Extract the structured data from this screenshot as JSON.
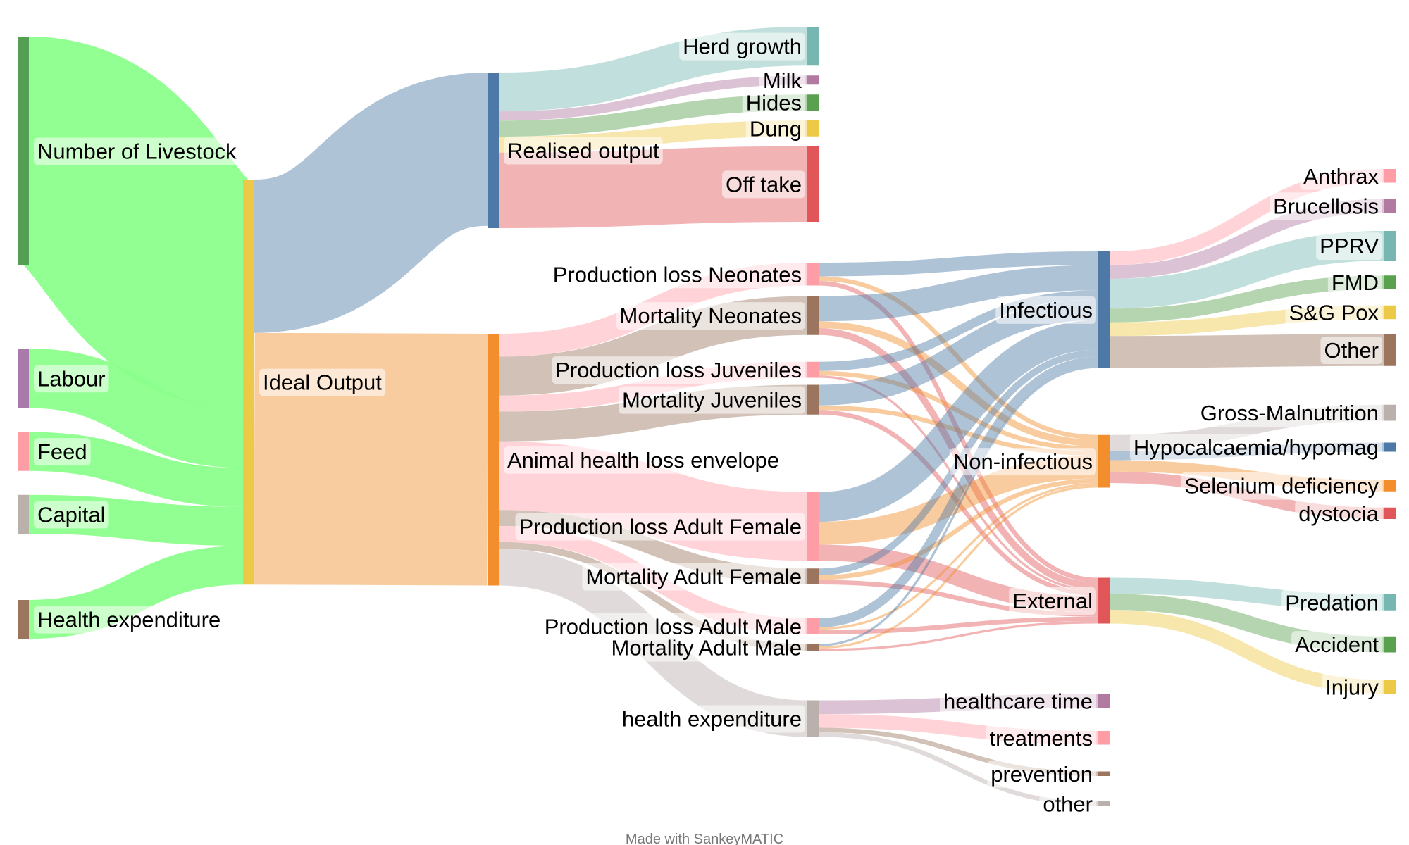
{
  "credit": "Made with SankeyMATIC",
  "nodes": [
    {
      "id": "livestock",
      "label": "Number of Livestock",
      "color": "#559f55",
      "label_side": "right"
    },
    {
      "id": "labour",
      "label": "Labour",
      "color": "#a97aab",
      "label_side": "right"
    },
    {
      "id": "feed",
      "label": "Feed",
      "color": "#ff9da7",
      "label_side": "right"
    },
    {
      "id": "capital",
      "label": "Capital",
      "color": "#bab0ac",
      "label_side": "right"
    },
    {
      "id": "healthexp_in",
      "label": "Health expenditure",
      "color": "#9c755f",
      "label_side": "right"
    },
    {
      "id": "ideal",
      "label": "Ideal Output",
      "color": "#edc948",
      "label_side": "right"
    },
    {
      "id": "realised",
      "label": "Realised output",
      "color": "#4e79a7",
      "label_side": "right"
    },
    {
      "id": "envelope",
      "label": "Animal health loss envelope",
      "color": "#f28e2b",
      "label_side": "right"
    },
    {
      "id": "herd",
      "label": "Herd growth",
      "color": "#76b7b2",
      "label_side": "left"
    },
    {
      "id": "milk",
      "label": "Milk",
      "color": "#b07aa1",
      "label_side": "left"
    },
    {
      "id": "hides",
      "label": "Hides",
      "color": "#59a14f",
      "label_side": "left"
    },
    {
      "id": "dung",
      "label": "Dung",
      "color": "#edc948",
      "label_side": "left"
    },
    {
      "id": "offtake",
      "label": "Off take",
      "color": "#e15759",
      "label_side": "left"
    },
    {
      "id": "pl_neo",
      "label": "Production loss Neonates",
      "color": "#ff9da7",
      "label_side": "left"
    },
    {
      "id": "mort_neo",
      "label": "Mortality Neonates",
      "color": "#9c755f",
      "label_side": "left"
    },
    {
      "id": "pl_juv",
      "label": "Production loss Juveniles",
      "color": "#ff9da7",
      "label_side": "left"
    },
    {
      "id": "mort_juv",
      "label": "Mortality Juveniles",
      "color": "#9c755f",
      "label_side": "left"
    },
    {
      "id": "pl_af",
      "label": "Production loss Adult Female",
      "color": "#ff9da7",
      "label_side": "left"
    },
    {
      "id": "mort_af",
      "label": "Mortality Adult Female",
      "color": "#9c755f",
      "label_side": "left"
    },
    {
      "id": "pl_am",
      "label": "Production loss Adult Male",
      "color": "#ff9da7",
      "label_side": "left"
    },
    {
      "id": "mort_am",
      "label": "Mortality Adult Male",
      "color": "#9c755f",
      "label_side": "left"
    },
    {
      "id": "health_exp",
      "label": "health expenditure",
      "color": "#bab0ac",
      "label_side": "left"
    },
    {
      "id": "infectious",
      "label": "Infectious",
      "color": "#4e79a7",
      "label_side": "left"
    },
    {
      "id": "noninf",
      "label": "Non-infectious",
      "color": "#f28e2b",
      "label_side": "left"
    },
    {
      "id": "external",
      "label": "External",
      "color": "#e15759",
      "label_side": "left"
    },
    {
      "id": "hc_time",
      "label": "healthcare time",
      "color": "#b07aa1",
      "label_side": "left"
    },
    {
      "id": "treatments",
      "label": "treatments",
      "color": "#ff9da7",
      "label_side": "left"
    },
    {
      "id": "prevention",
      "label": "prevention",
      "color": "#9c755f",
      "label_side": "left"
    },
    {
      "id": "other_he",
      "label": "other",
      "color": "#bab0ac",
      "label_side": "left"
    },
    {
      "id": "anthrax",
      "label": "Anthrax",
      "color": "#ff9da7",
      "label_side": "left"
    },
    {
      "id": "brucellosis",
      "label": "Brucellosis",
      "color": "#b07aa1",
      "label_side": "left"
    },
    {
      "id": "pprv",
      "label": "PPRV",
      "color": "#76b7b2",
      "label_side": "left"
    },
    {
      "id": "fmd",
      "label": "FMD",
      "color": "#59a14f",
      "label_side": "left"
    },
    {
      "id": "sgpox",
      "label": "S&G Pox",
      "color": "#edc948",
      "label_side": "left"
    },
    {
      "id": "other_inf",
      "label": "Other",
      "color": "#9c755f",
      "label_side": "left"
    },
    {
      "id": "gross_mal",
      "label": "Gross-Malnutrition",
      "color": "#bab0ac",
      "label_side": "left"
    },
    {
      "id": "hypocal",
      "label": "Hypocalcaemia/hypomag",
      "color": "#4e79a7",
      "label_side": "left"
    },
    {
      "id": "selenium",
      "label": "Selenium deficiency",
      "color": "#f28e2b",
      "label_side": "left"
    },
    {
      "id": "dystocia",
      "label": "dystocia",
      "color": "#e15759",
      "label_side": "left"
    },
    {
      "id": "predation",
      "label": "Predation",
      "color": "#76b7b2",
      "label_side": "left"
    },
    {
      "id": "accident",
      "label": "Accident",
      "color": "#59a14f",
      "label_side": "left"
    },
    {
      "id": "injury",
      "label": "Injury",
      "color": "#edc948",
      "label_side": "left"
    }
  ],
  "flows": [
    {
      "from": "livestock",
      "to": "ideal",
      "value": 100,
      "color": "#8bff8b"
    },
    {
      "from": "labour",
      "to": "ideal",
      "value": 26,
      "color": "#8bff8b"
    },
    {
      "from": "feed",
      "to": "ideal",
      "value": 17,
      "color": "#8bff8b"
    },
    {
      "from": "capital",
      "to": "ideal",
      "value": 17,
      "color": "#8bff8b"
    },
    {
      "from": "healthexp_in",
      "to": "ideal",
      "value": 17,
      "color": "#8bff8b"
    },
    {
      "from": "ideal",
      "to": "realised",
      "value": 67,
      "color": "#4e79a7"
    },
    {
      "from": "ideal",
      "to": "envelope",
      "value": 110,
      "color": "#f28e2b"
    },
    {
      "from": "realised",
      "to": "herd",
      "value": 17,
      "color": "#76b7b2"
    },
    {
      "from": "realised",
      "to": "milk",
      "value": 4,
      "color": "#b07aa1"
    },
    {
      "from": "realised",
      "to": "hides",
      "value": 7,
      "color": "#59a14f"
    },
    {
      "from": "realised",
      "to": "dung",
      "value": 7,
      "color": "#edc948"
    },
    {
      "from": "realised",
      "to": "offtake",
      "value": 33,
      "color": "#e15759"
    },
    {
      "from": "envelope",
      "to": "pl_neo",
      "value": 10,
      "color": "#ff9da7"
    },
    {
      "from": "envelope",
      "to": "mort_neo",
      "value": 17,
      "color": "#9c755f"
    },
    {
      "from": "envelope",
      "to": "pl_juv",
      "value": 7,
      "color": "#ff9da7"
    },
    {
      "from": "envelope",
      "to": "mort_juv",
      "value": 13,
      "color": "#9c755f"
    },
    {
      "from": "envelope",
      "to": "pl_af",
      "value": 30,
      "color": "#ff9da7"
    },
    {
      "from": "envelope",
      "to": "mort_af",
      "value": 7,
      "color": "#9c755f"
    },
    {
      "from": "envelope",
      "to": "pl_am",
      "value": 7,
      "color": "#ff9da7"
    },
    {
      "from": "envelope",
      "to": "mort_am",
      "value": 3,
      "color": "#9c755f"
    },
    {
      "from": "envelope",
      "to": "health_exp",
      "value": 16,
      "color": "#bab0ac"
    },
    {
      "from": "pl_neo",
      "to": "infectious",
      "value": 6,
      "color": "#4e79a7"
    },
    {
      "from": "pl_neo",
      "to": "noninf",
      "value": 2,
      "color": "#f28e2b"
    },
    {
      "from": "pl_neo",
      "to": "external",
      "value": 2,
      "color": "#e15759"
    },
    {
      "from": "mort_neo",
      "to": "infectious",
      "value": 11,
      "color": "#4e79a7"
    },
    {
      "from": "mort_neo",
      "to": "noninf",
      "value": 3,
      "color": "#f28e2b"
    },
    {
      "from": "mort_neo",
      "to": "external",
      "value": 3,
      "color": "#e15759"
    },
    {
      "from": "pl_juv",
      "to": "infectious",
      "value": 4,
      "color": "#4e79a7"
    },
    {
      "from": "pl_juv",
      "to": "noninf",
      "value": 2,
      "color": "#f28e2b"
    },
    {
      "from": "pl_juv",
      "to": "external",
      "value": 1,
      "color": "#e15759"
    },
    {
      "from": "mort_juv",
      "to": "infectious",
      "value": 9,
      "color": "#4e79a7"
    },
    {
      "from": "mort_juv",
      "to": "noninf",
      "value": 2,
      "color": "#f28e2b"
    },
    {
      "from": "mort_juv",
      "to": "external",
      "value": 2,
      "color": "#e15759"
    },
    {
      "from": "pl_af",
      "to": "infectious",
      "value": 13,
      "color": "#4e79a7"
    },
    {
      "from": "pl_af",
      "to": "noninf",
      "value": 10,
      "color": "#f28e2b"
    },
    {
      "from": "pl_af",
      "to": "external",
      "value": 7,
      "color": "#e15759"
    },
    {
      "from": "mort_af",
      "to": "infectious",
      "value": 3,
      "color": "#4e79a7"
    },
    {
      "from": "mort_af",
      "to": "noninf",
      "value": 2,
      "color": "#f28e2b"
    },
    {
      "from": "mort_af",
      "to": "external",
      "value": 2,
      "color": "#e15759"
    },
    {
      "from": "pl_am",
      "to": "infectious",
      "value": 4,
      "color": "#4e79a7"
    },
    {
      "from": "pl_am",
      "to": "noninf",
      "value": 1,
      "color": "#f28e2b"
    },
    {
      "from": "pl_am",
      "to": "external",
      "value": 2,
      "color": "#e15759"
    },
    {
      "from": "mort_am",
      "to": "infectious",
      "value": 1,
      "color": "#4e79a7"
    },
    {
      "from": "mort_am",
      "to": "noninf",
      "value": 1,
      "color": "#f28e2b"
    },
    {
      "from": "mort_am",
      "to": "external",
      "value": 1,
      "color": "#e15759"
    },
    {
      "from": "health_exp",
      "to": "hc_time",
      "value": 6,
      "color": "#b07aa1"
    },
    {
      "from": "health_exp",
      "to": "treatments",
      "value": 6,
      "color": "#ff9da7"
    },
    {
      "from": "health_exp",
      "to": "prevention",
      "value": 2,
      "color": "#9c755f"
    },
    {
      "from": "health_exp",
      "to": "other_he",
      "value": 2,
      "color": "#bab0ac"
    },
    {
      "from": "infectious",
      "to": "anthrax",
      "value": 6,
      "color": "#ff9da7"
    },
    {
      "from": "infectious",
      "to": "brucellosis",
      "value": 6,
      "color": "#b07aa1"
    },
    {
      "from": "infectious",
      "to": "pprv",
      "value": 13,
      "color": "#76b7b2"
    },
    {
      "from": "infectious",
      "to": "fmd",
      "value": 6,
      "color": "#59a14f"
    },
    {
      "from": "infectious",
      "to": "sgpox",
      "value": 6,
      "color": "#edc948"
    },
    {
      "from": "infectious",
      "to": "other_inf",
      "value": 14,
      "color": "#9c755f"
    },
    {
      "from": "noninf",
      "to": "gross_mal",
      "value": 7,
      "color": "#bab0ac"
    },
    {
      "from": "noninf",
      "to": "hypocal",
      "value": 4,
      "color": "#4e79a7"
    },
    {
      "from": "noninf",
      "to": "selenium",
      "value": 5,
      "color": "#f28e2b"
    },
    {
      "from": "noninf",
      "to": "dystocia",
      "value": 5,
      "color": "#e15759"
    },
    {
      "from": "external",
      "to": "predation",
      "value": 7,
      "color": "#76b7b2"
    },
    {
      "from": "external",
      "to": "accident",
      "value": 7,
      "color": "#59a14f"
    },
    {
      "from": "external",
      "to": "injury",
      "value": 6,
      "color": "#edc948"
    }
  ]
}
